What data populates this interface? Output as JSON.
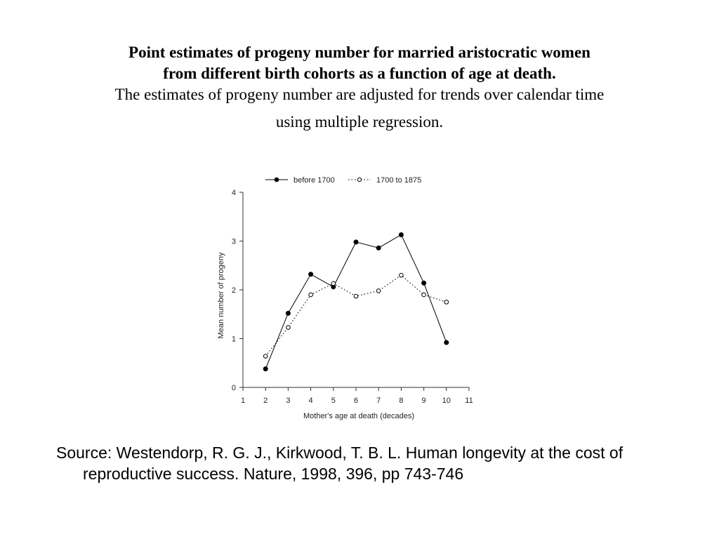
{
  "chart_data": {
    "type": "line",
    "title": "Point estimates of progeny number for married aristocratic women",
    "title_line2": "from different birth cohorts as a function of age at death.",
    "subtitle": "The estimates of progeny number are adjusted for trends over calendar time",
    "subtitle_line2": "using multiple regression.",
    "xlabel": "Mother's age at death (decades)",
    "ylabel": "Mean number of progeny",
    "xlim": [
      1,
      11
    ],
    "ylim": [
      0,
      4
    ],
    "x_ticks": [
      1,
      2,
      3,
      4,
      5,
      6,
      7,
      8,
      9,
      10,
      11
    ],
    "y_ticks": [
      0,
      1,
      2,
      3,
      4
    ],
    "grid": false,
    "legend": "top",
    "series": [
      {
        "name": "before 1700",
        "style": "solid line, filled circle markers",
        "color": "#000000",
        "x": [
          2,
          3,
          4,
          5,
          6,
          7,
          8,
          9,
          10
        ],
        "y": [
          0.38,
          1.52,
          2.32,
          2.06,
          2.98,
          2.86,
          3.13,
          2.14,
          0.92
        ]
      },
      {
        "name": "1700 to 1875",
        "style": "dotted line, open circle markers",
        "color": "#000000",
        "x": [
          2,
          3,
          4,
          5,
          6,
          7,
          8,
          9,
          10
        ],
        "y": [
          0.64,
          1.23,
          1.9,
          2.13,
          1.87,
          1.98,
          2.3,
          1.9,
          1.75
        ]
      }
    ]
  },
  "source": {
    "text": "Source:  Westendorp, R. G. J., Kirkwood, T. B. L. Human longevity at the cost of reproductive success.  Nature, 1998, 396, pp 743-746"
  }
}
